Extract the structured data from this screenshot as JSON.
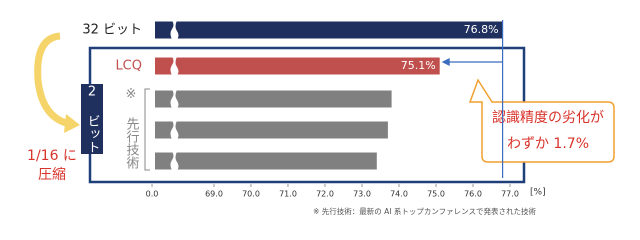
{
  "chart_data": {
    "type": "bar",
    "orientation": "horizontal",
    "categories": [
      "32 ビット",
      "LCQ",
      null,
      null,
      null
    ],
    "values": [
      76.8,
      75.1,
      73.8,
      73.7,
      73.4
    ],
    "value_labels": [
      "76.8%",
      "75.1%",
      null,
      null,
      null
    ],
    "colors": [
      "#1f2f5e",
      "#c0504d",
      "#808080",
      "#808080",
      "#808080"
    ],
    "xlim": [
      0,
      77
    ],
    "xticks": [
      {
        "value": 0,
        "label": "0.0"
      },
      {
        "value": 69,
        "label": "69.0"
      },
      {
        "value": 70,
        "label": "70.0"
      },
      {
        "value": 71,
        "label": "71.0"
      },
      {
        "value": 72,
        "label": "72.0"
      },
      {
        "value": 73,
        "label": "73.0"
      },
      {
        "value": 74,
        "label": "74.0"
      },
      {
        "value": 75,
        "label": "75.0"
      },
      {
        "value": 76,
        "label": "76.0"
      },
      {
        "value": 77,
        "label": "77.0"
      }
    ],
    "xlabel": "[%]",
    "group_label": "2 ビット",
    "prior_art_label": "※ 先行技術",
    "compression_label": [
      "1/16 に",
      "圧縮"
    ],
    "callout": [
      "認識精度の劣化が",
      "わずか 1.7%"
    ],
    "footnote": "※ 先行技術：最新の AI 系トップカンファレンスで発表された技術"
  }
}
